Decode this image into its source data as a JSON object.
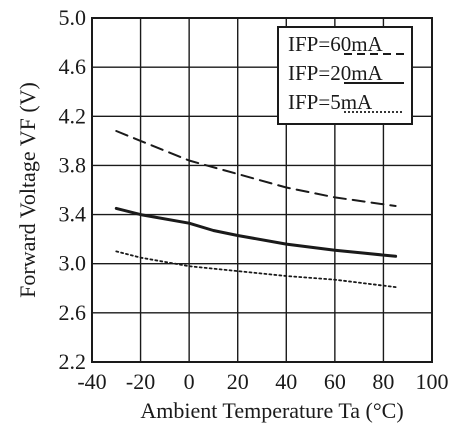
{
  "chart_data": {
    "type": "line",
    "xlabel": "Ambient Temperature Ta (°C)",
    "ylabel": "Forward Voltage VF (V)",
    "xlim": [
      -40,
      100
    ],
    "ylim": [
      2.2,
      5.0
    ],
    "x_ticks": [
      "-40",
      "-20",
      "0",
      "20",
      "40",
      "60",
      "80",
      "100"
    ],
    "y_ticks": [
      "2.2",
      "2.6",
      "3.0",
      "3.4",
      "3.8",
      "4.2",
      "4.6",
      "5.0"
    ],
    "grid": true,
    "legend_position": "top-right",
    "series": [
      {
        "name": "IFP=60mA",
        "line_style": "dashed",
        "color": "#1a1a1a",
        "points": [
          [
            -30,
            4.08
          ],
          [
            -20,
            4.0
          ],
          [
            0,
            3.84
          ],
          [
            20,
            3.73
          ],
          [
            40,
            3.62
          ],
          [
            60,
            3.54
          ],
          [
            85,
            3.47
          ]
        ]
      },
      {
        "name": "IFP=20mA",
        "line_style": "solid",
        "color": "#1a1a1a",
        "points": [
          [
            -30,
            3.45
          ],
          [
            -20,
            3.4
          ],
          [
            0,
            3.33
          ],
          [
            10,
            3.27
          ],
          [
            20,
            3.23
          ],
          [
            40,
            3.16
          ],
          [
            60,
            3.11
          ],
          [
            85,
            3.06
          ]
        ]
      },
      {
        "name": "IFP=5mA",
        "line_style": "dotted",
        "color": "#1a1a1a",
        "points": [
          [
            -30,
            3.1
          ],
          [
            -20,
            3.05
          ],
          [
            0,
            2.98
          ],
          [
            20,
            2.94
          ],
          [
            40,
            2.9
          ],
          [
            60,
            2.87
          ],
          [
            85,
            2.81
          ]
        ]
      }
    ]
  }
}
